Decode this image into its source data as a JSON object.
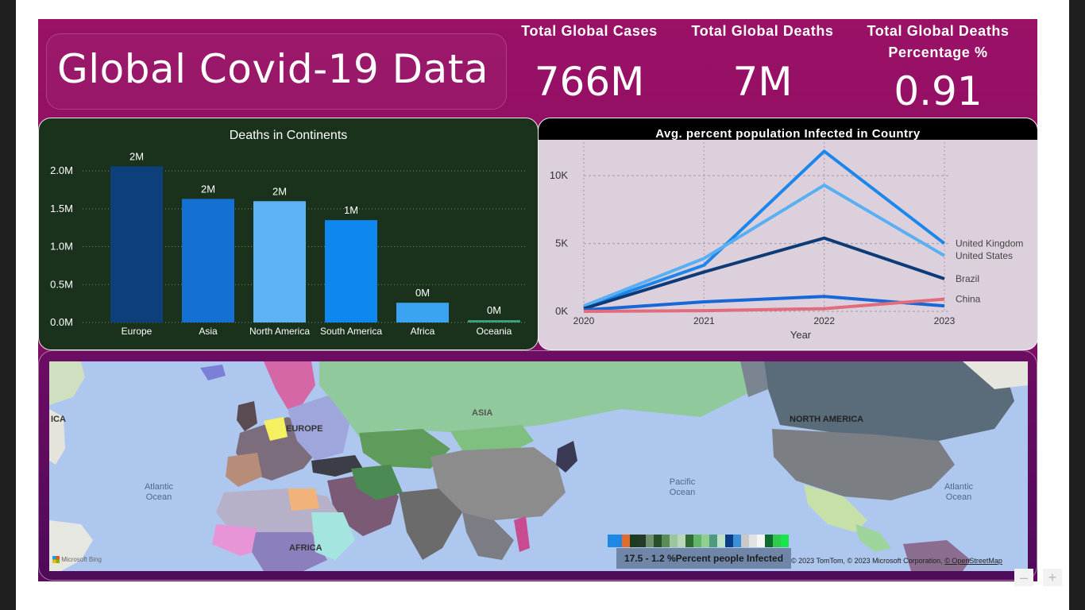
{
  "title": "Global Covid-19 Data",
  "kpis": [
    {
      "label_line1": "Total Global Cases",
      "label_line2": "",
      "value": "766M"
    },
    {
      "label_line1": "Total Global Deaths",
      "label_line2": "",
      "value": "7M"
    },
    {
      "label_line1": "Total Global Deaths",
      "label_line2": "Percentage %",
      "value": "0.91"
    }
  ],
  "chart_data": [
    {
      "type": "bar",
      "title": "Deaths in Continents",
      "categories": [
        "Europe",
        "Asia",
        "North America",
        "South America",
        "Africa",
        "Oceania"
      ],
      "values": [
        2.06,
        1.63,
        1.6,
        1.35,
        0.26,
        0.03
      ],
      "data_labels": [
        "2M",
        "2M",
        "2M",
        "1M",
        "0M",
        "0M"
      ],
      "bar_colors": [
        "#0d3f7a",
        "#1470d2",
        "#5db3f5",
        "#0e87ee",
        "#3aa4f2",
        "#3fa384"
      ],
      "y_ticks": [
        "0.0M",
        "0.5M",
        "1.0M",
        "1.5M",
        "2.0M"
      ],
      "y_tick_values": [
        0,
        0.5,
        1.0,
        1.5,
        2.0
      ],
      "ylim": [
        0,
        2.2
      ],
      "grid": true
    },
    {
      "type": "line",
      "title": "Avg. percent population Infected in Country",
      "xlabel": "Year",
      "x": [
        "2020",
        "2021",
        "2022",
        "2023"
      ],
      "y_ticks": [
        "0K",
        "5K",
        "10K"
      ],
      "y_tick_values": [
        0,
        5000,
        10000
      ],
      "ylim": [
        0,
        12000
      ],
      "grid": true,
      "series": [
        {
          "name": "United Kingdom",
          "color": "#1c86ea",
          "values": [
            300,
            3400,
            11800,
            5000
          ]
        },
        {
          "name": "United States",
          "color": "#58b0f2",
          "values": [
            400,
            3900,
            9300,
            4100
          ]
        },
        {
          "name": "Brazil",
          "color": "#0c3b77",
          "values": [
            200,
            2900,
            5400,
            2400
          ]
        },
        {
          "name": "",
          "color": "#1768d6",
          "values": [
            100,
            700,
            1100,
            400
          ]
        },
        {
          "name": "China",
          "color": "#e06c7e",
          "values": [
            0,
            50,
            200,
            900
          ]
        }
      ]
    }
  ],
  "map": {
    "labels": {
      "asia": "ASIA",
      "europe": "EUROPE",
      "africa": "AFRICA",
      "north_america": "NORTH AMERICA",
      "atlantic_left_1": "Atlantic",
      "atlantic_left_2": "Ocean",
      "pacific_1": "Pacific",
      "pacific_2": "Ocean",
      "atlantic_right_1": "Atlantic",
      "atlantic_right_2": "Ocean",
      "rica": "ICA"
    },
    "legend_text": "17.5 - 1.2 %Percent people Infected",
    "legend_swatches": [
      "#1e88e5",
      "#e46a2c",
      "#1b3d1f",
      "#263b26",
      "#6f8f6f",
      "#274f2a",
      "#5a8c5a",
      "#9cc79c",
      "#b8d8b8",
      "#2f6b33",
      "#63b56a",
      "#8fd08f",
      "#4f9a7f",
      "#bde2c7",
      "#0b3c86",
      "#3b8fd6",
      "#c9c9c9",
      "#e3e3e3",
      "#f5f5f5",
      "#0f6b2e",
      "#2fc94e",
      "#19e64a"
    ],
    "copyright_text": "© 2023 TomTom, © 2023 Microsoft Corporation,",
    "copyright_link": "© OpenStreetMap",
    "bing_text": "Microsoft Bing",
    "zoom_out": "–",
    "zoom_in": "+"
  }
}
